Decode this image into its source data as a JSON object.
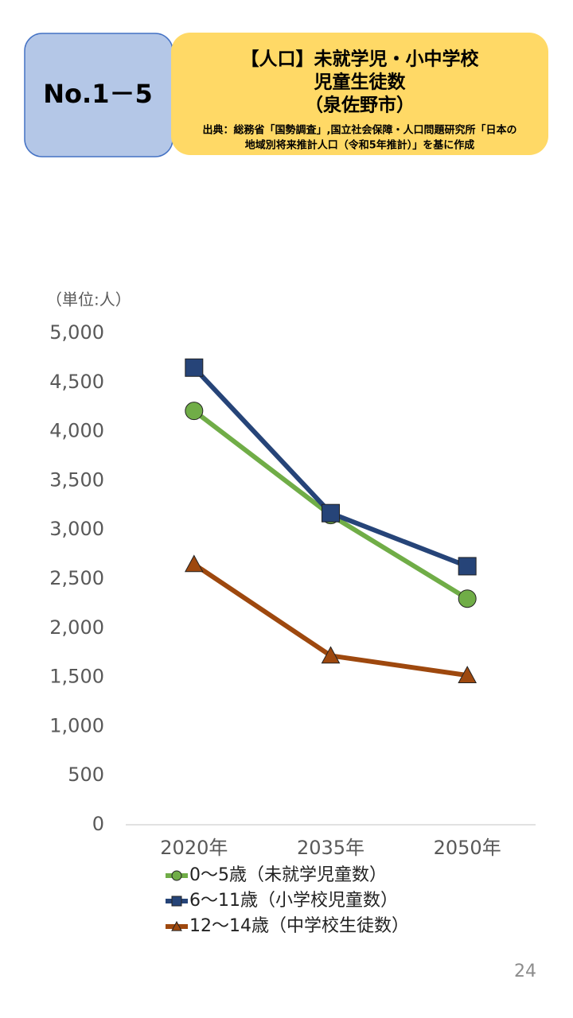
{
  "header": {
    "number": "No.1－5",
    "title_lines": [
      "【人口】未就学児・小中学校",
      "児童生徒数",
      "（泉佐野市）"
    ],
    "source_lines": [
      "出典：総務省「国勢調査」,国立社会保障・人口問題研究所「日本の",
      "地域別将来推計人口（令和5年推計）」を基に作成"
    ]
  },
  "chart_data": {
    "type": "line",
    "y_label": "（単位:人）",
    "categories": [
      "2020年",
      "2035年",
      "2050年"
    ],
    "series": [
      {
        "name": "0～5歳（未就学児童数）",
        "color": "#70ad47",
        "marker": "circle",
        "values": [
          4210,
          3150,
          2300
        ]
      },
      {
        "name": "6～11歳（小学校児童数）",
        "color": "#264478",
        "marker": "square",
        "values": [
          4650,
          3170,
          2630
        ]
      },
      {
        "name": "12～14歳（中学校生徒数）",
        "color": "#9e480e",
        "marker": "triangle",
        "values": [
          2650,
          1720,
          1520
        ]
      }
    ],
    "ylim": [
      0,
      5000
    ],
    "yticks": [
      0,
      500,
      {
        "value": 1000,
        "label": "1,000"
      },
      {
        "value": 1500,
        "label": "1,500"
      },
      {
        "value": 2000,
        "label": "2,000"
      },
      {
        "value": 2500,
        "label": "2,500"
      },
      {
        "value": 3000,
        "label": "3,000"
      },
      {
        "value": 3500,
        "label": "3,500"
      },
      {
        "value": 4000,
        "label": "4,000"
      },
      {
        "value": 4500,
        "label": "4,500"
      },
      {
        "value": 5000,
        "label": "5,000"
      }
    ],
    "grid": false,
    "legend": "bottom"
  },
  "page_number": "24"
}
